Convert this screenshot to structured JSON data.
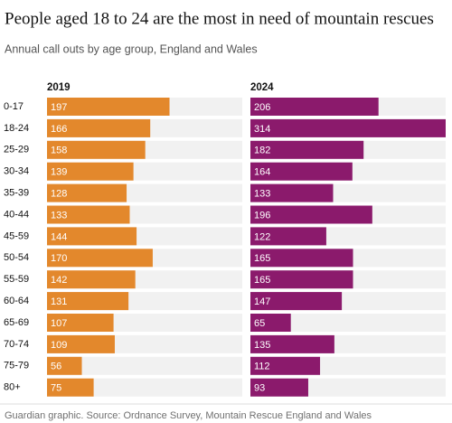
{
  "chart_data": {
    "type": "bar",
    "title": "People aged 18 to 24 are the most in need of mountain rescues",
    "subtitle": "Annual call outs by age group, England and Wales",
    "categories": [
      "0-17",
      "18-24",
      "25-29",
      "30-34",
      "35-39",
      "40-44",
      "45-59",
      "50-54",
      "55-59",
      "60-64",
      "65-69",
      "70-74",
      "75-79",
      "80+"
    ],
    "series": [
      {
        "name": "2019",
        "color": "#e3882c",
        "values": [
          197,
          166,
          158,
          139,
          128,
          133,
          144,
          170,
          142,
          131,
          107,
          109,
          56,
          75
        ]
      },
      {
        "name": "2024",
        "color": "#8b1a6c",
        "values": [
          206,
          314,
          182,
          164,
          133,
          196,
          122,
          165,
          165,
          147,
          65,
          135,
          112,
          93
        ]
      }
    ],
    "source": "Guardian graphic. Source: Ordnance Survey, Mountain Rescue England and Wales"
  }
}
